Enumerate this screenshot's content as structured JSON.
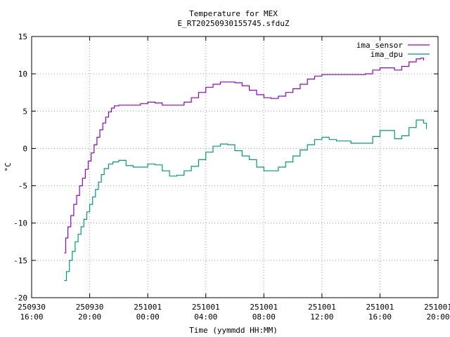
{
  "chart_data": {
    "type": "line",
    "title": "Temperature for MEX",
    "subtitle": "E_RT20250930155745.sfduZ",
    "xlabel": "Time (yymmdd HH:MM)",
    "ylabel": "°C",
    "xlim": [
      "250930 16:00",
      "251001 20:00"
    ],
    "xlim_hours": [
      0,
      28
    ],
    "ylim": [
      -20,
      15
    ],
    "grid": true,
    "legend_position": "top-right",
    "x_ticks": [
      {
        "hours": 0,
        "line1": "250930",
        "line2": "16:00"
      },
      {
        "hours": 4,
        "line1": "250930",
        "line2": "20:00"
      },
      {
        "hours": 8,
        "line1": "251001",
        "line2": "00:00"
      },
      {
        "hours": 12,
        "line1": "251001",
        "line2": "04:00"
      },
      {
        "hours": 16,
        "line1": "251001",
        "line2": "08:00"
      },
      {
        "hours": 20,
        "line1": "251001",
        "line2": "12:00"
      },
      {
        "hours": 24,
        "line1": "251001",
        "line2": "16:00"
      },
      {
        "hours": 28,
        "line1": "251001",
        "line2": "20:00"
      }
    ],
    "y_ticks": [
      15,
      10,
      5,
      0,
      -5,
      -10,
      -15,
      -20
    ],
    "series": [
      {
        "name": "ima_sensor",
        "color": "#9400d3",
        "points": [
          [
            2.25,
            -14.0
          ],
          [
            2.35,
            -12.0
          ],
          [
            2.5,
            -10.5
          ],
          [
            2.7,
            -9.0
          ],
          [
            2.9,
            -7.5
          ],
          [
            3.1,
            -6.3
          ],
          [
            3.3,
            -5.0
          ],
          [
            3.5,
            -4.0
          ],
          [
            3.7,
            -2.8
          ],
          [
            3.9,
            -1.7
          ],
          [
            4.1,
            -0.6
          ],
          [
            4.3,
            0.5
          ],
          [
            4.5,
            1.5
          ],
          [
            4.7,
            2.5
          ],
          [
            4.9,
            3.4
          ],
          [
            5.1,
            4.2
          ],
          [
            5.3,
            4.9
          ],
          [
            5.5,
            5.4
          ],
          [
            5.7,
            5.7
          ],
          [
            6.0,
            5.8
          ],
          [
            7.0,
            5.8
          ],
          [
            7.5,
            6.0
          ],
          [
            8.0,
            6.2
          ],
          [
            8.5,
            6.1
          ],
          [
            9.0,
            5.8
          ],
          [
            10.0,
            5.8
          ],
          [
            10.5,
            6.2
          ],
          [
            11.0,
            6.8
          ],
          [
            11.5,
            7.5
          ],
          [
            12.0,
            8.2
          ],
          [
            12.5,
            8.6
          ],
          [
            13.0,
            8.9
          ],
          [
            14.0,
            8.8
          ],
          [
            14.5,
            8.4
          ],
          [
            15.0,
            7.8
          ],
          [
            15.5,
            7.2
          ],
          [
            16.0,
            6.8
          ],
          [
            16.5,
            6.7
          ],
          [
            17.0,
            7.0
          ],
          [
            17.5,
            7.5
          ],
          [
            18.0,
            8.0
          ],
          [
            18.5,
            8.6
          ],
          [
            19.0,
            9.3
          ],
          [
            19.5,
            9.7
          ],
          [
            20.0,
            9.9
          ],
          [
            22.0,
            9.9
          ],
          [
            23.0,
            10.0
          ],
          [
            23.5,
            10.5
          ],
          [
            24.0,
            10.8
          ],
          [
            24.5,
            10.8
          ],
          [
            25.0,
            10.5
          ],
          [
            25.5,
            11.0
          ],
          [
            26.0,
            11.6
          ],
          [
            26.5,
            12.0
          ],
          [
            26.8,
            12.1
          ],
          [
            27.0,
            11.8
          ]
        ]
      },
      {
        "name": "ima_dpu",
        "color": "#009e73",
        "points": [
          [
            2.25,
            -17.7
          ],
          [
            2.4,
            -16.5
          ],
          [
            2.6,
            -15.0
          ],
          [
            2.8,
            -13.8
          ],
          [
            3.0,
            -12.5
          ],
          [
            3.2,
            -11.5
          ],
          [
            3.4,
            -10.5
          ],
          [
            3.6,
            -9.5
          ],
          [
            3.8,
            -8.5
          ],
          [
            4.0,
            -7.5
          ],
          [
            4.2,
            -6.5
          ],
          [
            4.4,
            -5.5
          ],
          [
            4.6,
            -4.5
          ],
          [
            4.8,
            -3.5
          ],
          [
            5.0,
            -2.7
          ],
          [
            5.3,
            -2.1
          ],
          [
            5.6,
            -1.8
          ],
          [
            6.0,
            -1.6
          ],
          [
            6.5,
            -2.3
          ],
          [
            7.0,
            -2.5
          ],
          [
            7.5,
            -2.5
          ],
          [
            8.0,
            -2.1
          ],
          [
            8.5,
            -2.2
          ],
          [
            9.0,
            -3.0
          ],
          [
            9.5,
            -3.7
          ],
          [
            10.0,
            -3.6
          ],
          [
            10.5,
            -3.0
          ],
          [
            11.0,
            -2.4
          ],
          [
            11.5,
            -1.5
          ],
          [
            12.0,
            -0.5
          ],
          [
            12.5,
            0.3
          ],
          [
            13.0,
            0.6
          ],
          [
            13.5,
            0.5
          ],
          [
            14.0,
            -0.3
          ],
          [
            14.5,
            -1.0
          ],
          [
            15.0,
            -1.5
          ],
          [
            15.5,
            -2.5
          ],
          [
            16.0,
            -3.0
          ],
          [
            16.5,
            -3.0
          ],
          [
            17.0,
            -2.5
          ],
          [
            17.5,
            -1.8
          ],
          [
            18.0,
            -1.0
          ],
          [
            18.5,
            -0.2
          ],
          [
            19.0,
            0.5
          ],
          [
            19.5,
            1.2
          ],
          [
            20.0,
            1.5
          ],
          [
            20.5,
            1.2
          ],
          [
            21.0,
            1.0
          ],
          [
            22.0,
            0.7
          ],
          [
            23.0,
            0.7
          ],
          [
            23.5,
            1.6
          ],
          [
            24.0,
            2.4
          ],
          [
            24.5,
            2.4
          ],
          [
            25.0,
            1.3
          ],
          [
            25.5,
            1.7
          ],
          [
            26.0,
            2.8
          ],
          [
            26.5,
            3.8
          ],
          [
            27.0,
            3.4
          ],
          [
            27.2,
            2.6
          ]
        ]
      }
    ]
  }
}
